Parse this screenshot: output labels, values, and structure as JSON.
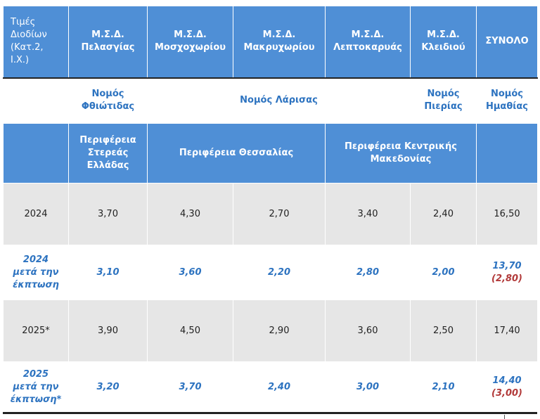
{
  "header": {
    "first_lines": [
      "Τιμές",
      "Διοδίων",
      "(Κατ.2,",
      "Ι.Χ.)"
    ],
    "stations": [
      [
        "Μ.Σ.Δ.",
        "Πελασγίας"
      ],
      [
        "Μ.Σ.Δ.",
        "Μοσχοχωρίου"
      ],
      [
        "Μ.Σ.Δ.",
        "Μακρυχωρίου"
      ],
      [
        "Μ.Σ.Δ.",
        "Λεπτοκαρυάς"
      ],
      [
        "Μ.Σ.Δ.",
        "Κλειδιού"
      ]
    ],
    "total": "ΣΥΝΟΛΟ"
  },
  "prefectures": {
    "fthiotida": [
      "Νομός",
      "Φθιώτιδας"
    ],
    "larisa": "Νομός Λάρισας",
    "pieria": [
      "Νομός",
      "Πιερίας"
    ],
    "imathia": [
      "Νομός",
      "Ημαθίας"
    ]
  },
  "regions": {
    "sterea": [
      "Περιφέρεια",
      "Στερεάς",
      "Ελλάδας"
    ],
    "thessalia": "Περιφέρεια Θεσσαλίας",
    "kentriki": [
      "Περιφέρεια Κεντρικής",
      "Μακεδονίας"
    ]
  },
  "rows": [
    {
      "label": [
        "2024"
      ],
      "values": [
        "3,70",
        "4,30",
        "2,70",
        "3,40",
        "2,40"
      ],
      "total": "16,50",
      "total_note": ""
    },
    {
      "label": [
        "2024",
        "μετά την",
        "έκπτωση"
      ],
      "values": [
        "3,10",
        "3,60",
        "2,20",
        "2,80",
        "2,00"
      ],
      "total": "13,70",
      "total_note": "(2,80)"
    },
    {
      "label": [
        "2025*"
      ],
      "values": [
        "3,90",
        "4,50",
        "2,90",
        "3,60",
        "2,50"
      ],
      "total": "17,40",
      "total_note": ""
    },
    {
      "label": [
        "2025",
        "μετά την",
        "έκπτωση*"
      ],
      "values": [
        "3,20",
        "3,70",
        "2,40",
        "3,00",
        "2,10"
      ],
      "total": "14,40",
      "total_note": "(3,00)"
    }
  ]
}
